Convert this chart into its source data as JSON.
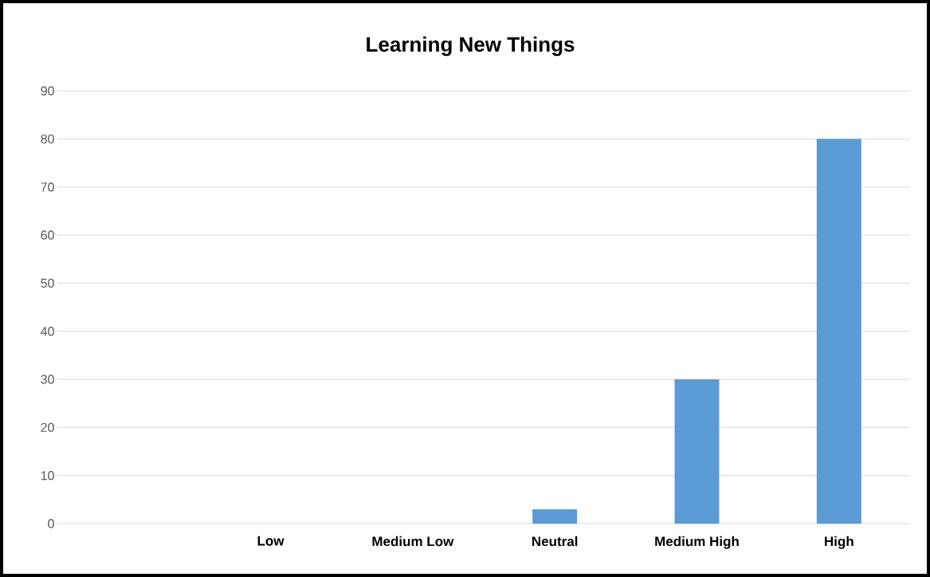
{
  "chart_data": {
    "type": "bar",
    "title": "Learning New Things",
    "categories": [
      null,
      "Low",
      "Medium Low",
      "Neutral",
      "Medium High",
      "High"
    ],
    "values": [
      null,
      0,
      0,
      3,
      30,
      80
    ],
    "color": "#5b9bd5",
    "ylim": [
      0,
      90
    ],
    "yticks": [
      0,
      10,
      20,
      30,
      40,
      50,
      60,
      70,
      80,
      90
    ],
    "grid": "y"
  }
}
